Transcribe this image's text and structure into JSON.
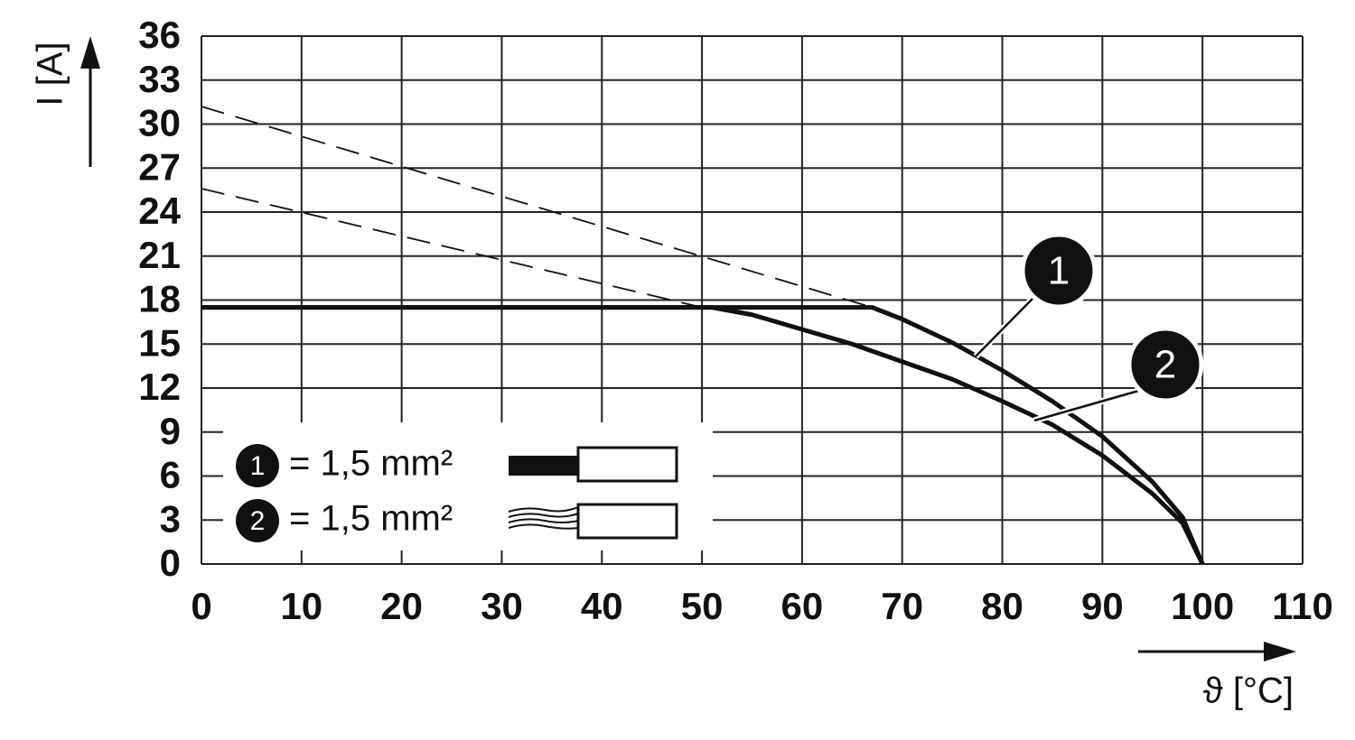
{
  "chart_data": {
    "type": "line",
    "x_label": "ϑ [°C]",
    "y_label": "I [A]",
    "xlim": [
      0,
      110
    ],
    "ylim": [
      0,
      36
    ],
    "xticks": [
      0,
      10,
      20,
      30,
      40,
      50,
      60,
      70,
      80,
      90,
      100,
      110
    ],
    "yticks": [
      0,
      3,
      6,
      9,
      12,
      15,
      18,
      21,
      24,
      27,
      30,
      33,
      36
    ],
    "grid": true,
    "legend_label": "= 1,5 mm²",
    "series": [
      {
        "name": "1",
        "color": "#111111",
        "style": "solid",
        "x": [
          0,
          67,
          70,
          75,
          80,
          85,
          90,
          95,
          98,
          100
        ],
        "values": [
          17.5,
          17.5,
          16.7,
          15.1,
          13.2,
          11.1,
          8.7,
          5.6,
          3.2,
          0
        ]
      },
      {
        "name": "2",
        "color": "#111111",
        "style": "solid",
        "x": [
          0,
          51,
          55,
          60,
          65,
          70,
          75,
          80,
          85,
          90,
          95,
          98,
          100
        ],
        "values": [
          17.5,
          17.5,
          17.0,
          16.0,
          15.0,
          13.8,
          12.6,
          11.1,
          9.5,
          7.4,
          4.8,
          2.8,
          0
        ]
      },
      {
        "color": "#111111",
        "style": "dashed",
        "x": [
          0,
          67
        ],
        "values": [
          31.2,
          17.5
        ]
      },
      {
        "color": "#111111",
        "style": "dashed",
        "x": [
          0,
          50
        ],
        "values": [
          25.6,
          17.5
        ]
      }
    ]
  }
}
